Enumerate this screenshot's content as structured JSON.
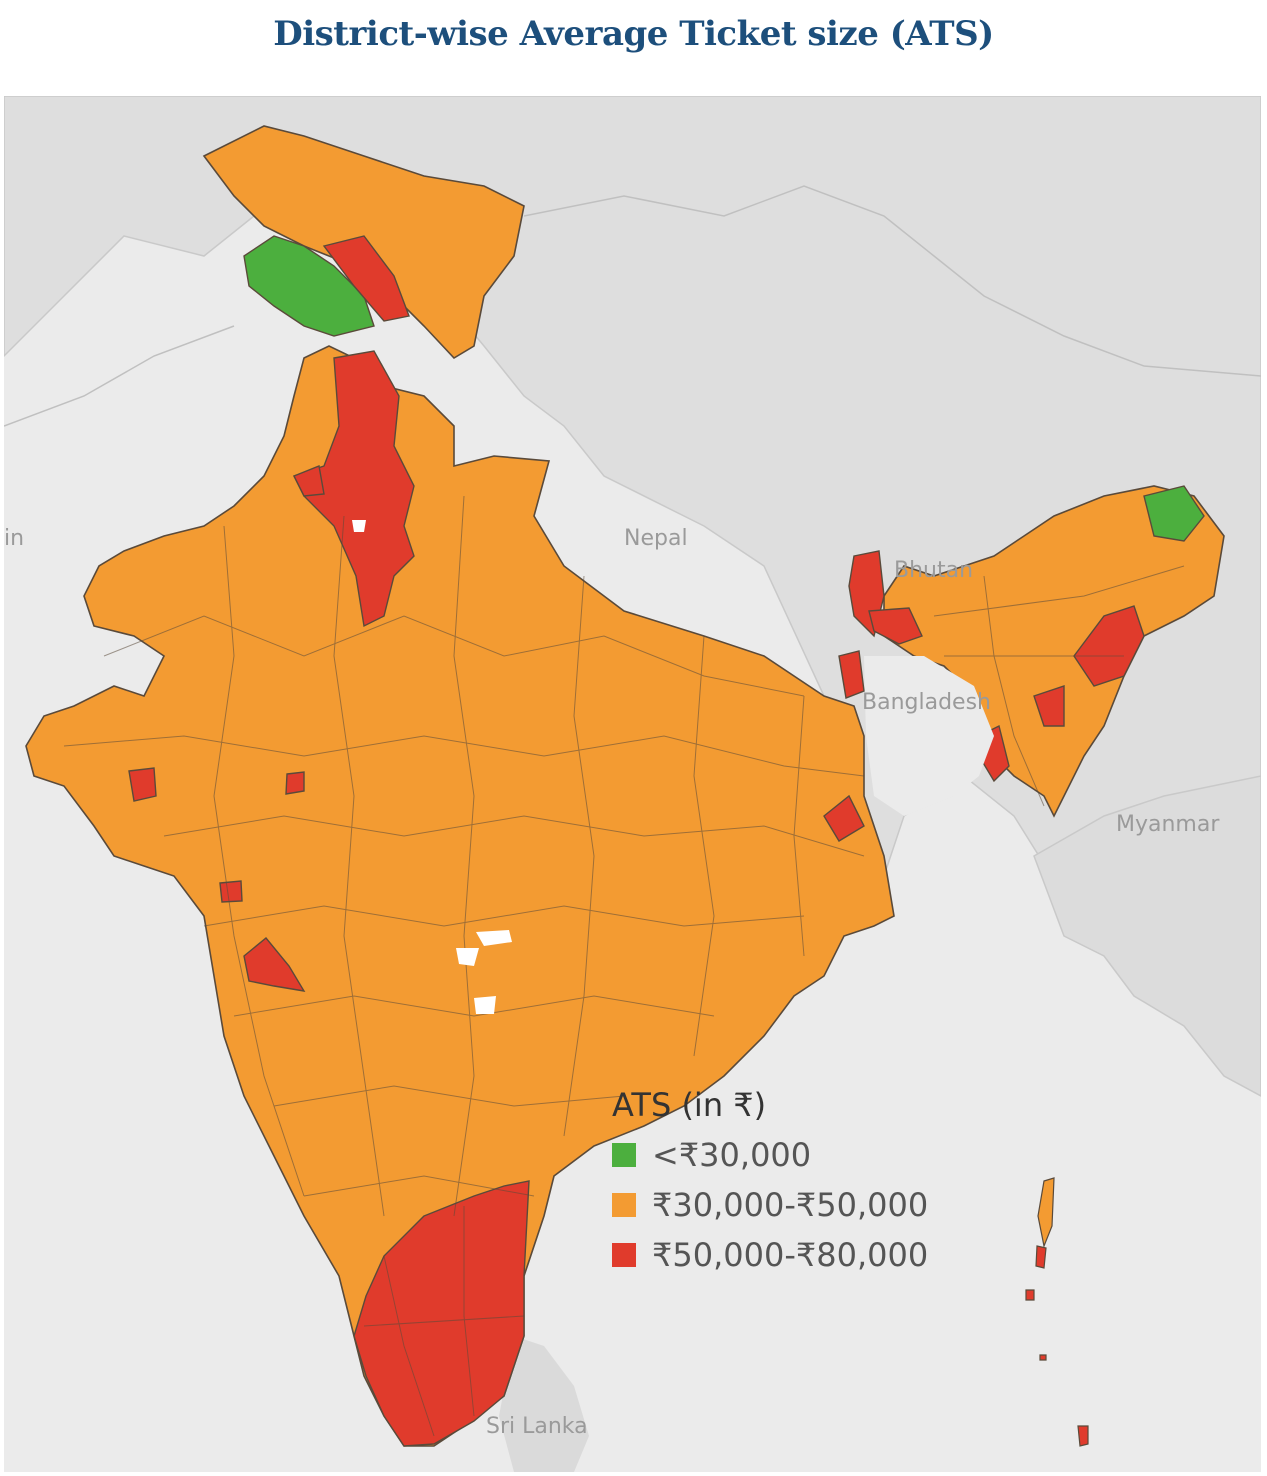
{
  "title": "District-wise Average Ticket size (ATS)",
  "map_labels": {
    "nepal": "Nepal",
    "bhutan": "Bhutan",
    "bangladesh": "Bangladesh",
    "myanmar": "Myanmar",
    "sri_lanka": "Sri Lanka",
    "left_edge": "in"
  },
  "legend": {
    "title": "ATS (in ₹)",
    "items": [
      {
        "label": "<₹30,000",
        "color": "#4caf3e"
      },
      {
        "label": "₹30,000-₹50,000",
        "color": "#f39b32"
      },
      {
        "label": "₹50,000-₹80,000",
        "color": "#e03b2c"
      }
    ]
  },
  "colors": {
    "background": "#ebebeb",
    "land": "#dadada",
    "border": "#5a4a3a"
  }
}
